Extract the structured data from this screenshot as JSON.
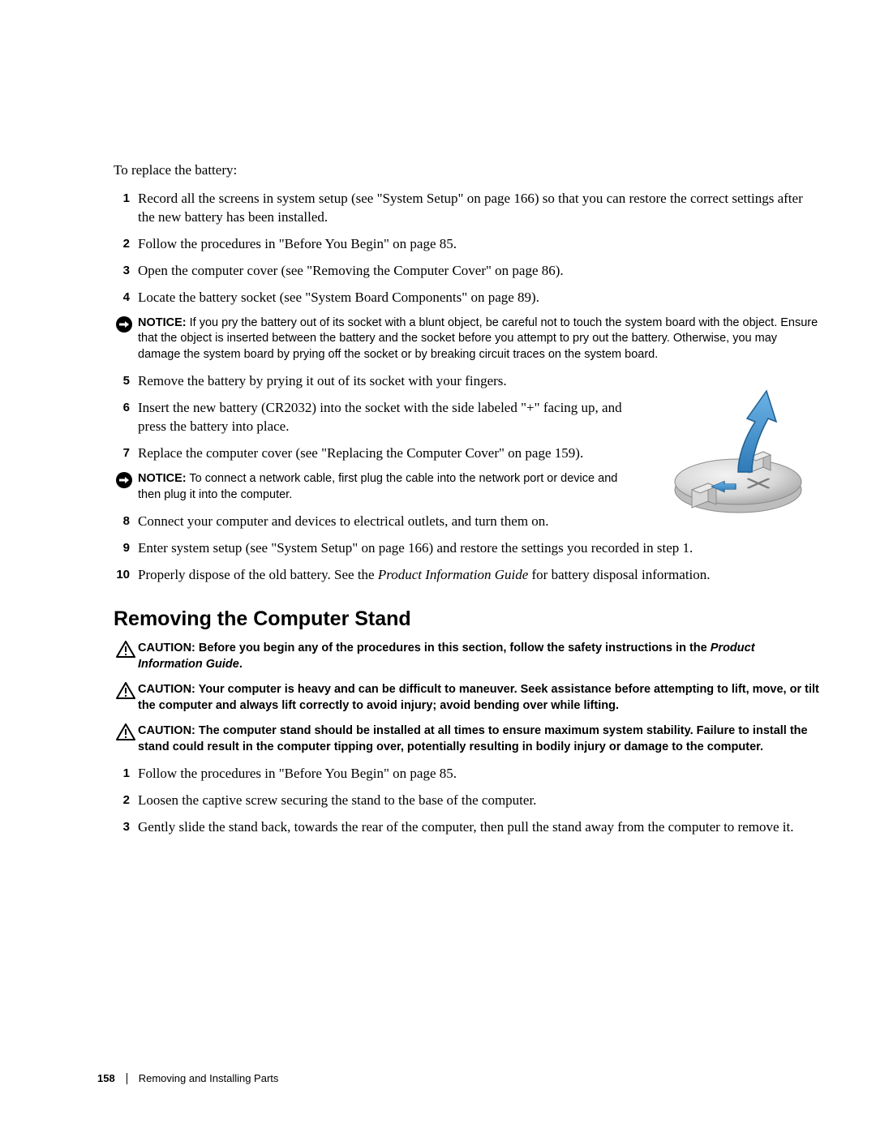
{
  "page": {
    "number": "158",
    "section": "Removing and Installing Parts"
  },
  "intro": "To replace the battery:",
  "steps_a": [
    {
      "n": "1",
      "t": "Record all the screens in system setup (see \"System Setup\" on page 166) so that you can restore the correct settings after the new battery has been installed."
    },
    {
      "n": "2",
      "t": "Follow the procedures in \"Before You Begin\" on page 85."
    },
    {
      "n": "3",
      "t": "Open the computer cover (see \"Removing the Computer Cover\" on page 86)."
    },
    {
      "n": "4",
      "t": "Locate the battery socket (see \"System Board Components\" on page 89)."
    }
  ],
  "notice1": {
    "label": "NOTICE:",
    "text": " If you pry the battery out of its socket with a blunt object, be careful not to touch the system board with the object. Ensure that the object is inserted between the battery and the socket before you attempt to pry out the battery. Otherwise, you may damage the system board by prying off the socket or by breaking circuit traces on the system board."
  },
  "steps_b": [
    {
      "n": "5",
      "t": "Remove the battery by prying it out of its socket with your fingers."
    },
    {
      "n": "6",
      "t": "Insert the new battery (CR2032) into the socket with the side labeled \"+\" facing up, and press the battery into place."
    },
    {
      "n": "7",
      "t": "Replace the computer cover (see \"Replacing the Computer Cover\" on page 159)."
    }
  ],
  "notice2": {
    "label": "NOTICE:",
    "text": " To connect a network cable, first plug the cable into the network port or device and then plug it into the computer."
  },
  "steps_c": [
    {
      "n": "8",
      "t": "Connect your computer and devices to electrical outlets, and turn them on."
    }
  ],
  "steps_d": [
    {
      "n": "9",
      "t": "Enter system setup (see \"System Setup\" on page 166) and restore the settings you recorded in step 1."
    },
    {
      "n": "10",
      "t_pre": "Properly dispose of the old battery. See the ",
      "t_ital": "Product Information Guide",
      "t_post": " for battery disposal information."
    }
  ],
  "heading": "Removing the Computer Stand",
  "cautions": [
    {
      "label": "CAUTION:",
      "pre": " Before you begin any of the procedures in this section, follow the safety instructions in the ",
      "ital": "Product Information Guide",
      "post": "."
    },
    {
      "label": "CAUTION:",
      "pre": " Your computer is heavy and can be difficult to maneuver. Seek assistance before attempting to lift, move, or tilt the computer and always lift correctly to avoid injury; avoid bending over while lifting.",
      "ital": "",
      "post": ""
    },
    {
      "label": "CAUTION:",
      "pre": " The computer stand should be installed at all times to ensure maximum system stability. Failure to install the stand could result in the computer tipping over, potentially resulting in bodily injury or damage to the computer.",
      "ital": "",
      "post": ""
    }
  ],
  "steps_e": [
    {
      "n": "1",
      "t": "Follow the procedures in \"Before You Begin\" on page 85."
    },
    {
      "n": "2",
      "t": "Loosen the captive screw securing the stand to the base of the computer."
    },
    {
      "n": "3",
      "t": "Gently slide the stand back, towards the rear of the computer, then pull the stand away from the computer to remove it."
    }
  ],
  "colors": {
    "arrow_fill": "#3b8ccc",
    "arrow_stroke": "#1f5f90",
    "disc_light": "#e6e6e6",
    "disc_mid": "#cfcfcf",
    "disc_dark": "#9e9e9e",
    "tab_fill": "#d8d8d8",
    "tab_stroke": "#8a8a8a"
  }
}
